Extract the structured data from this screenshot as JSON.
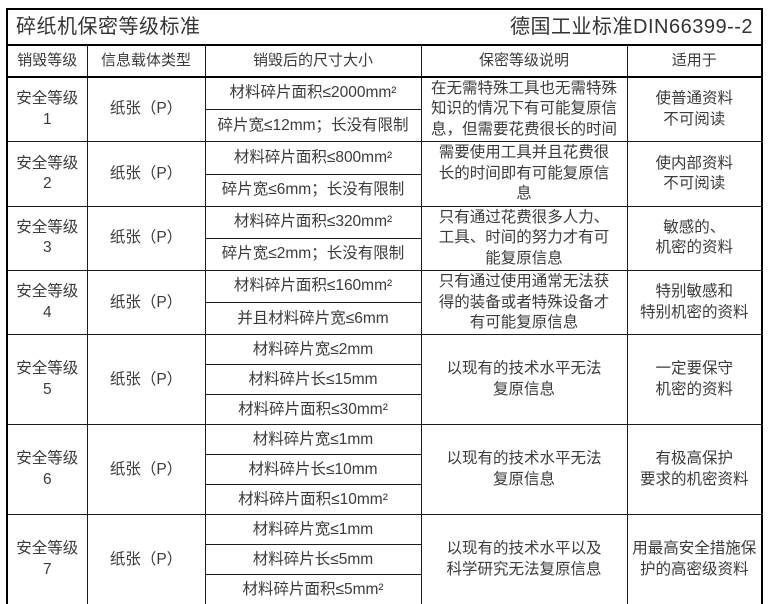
{
  "title": {
    "left": "碎纸机保密等级标准",
    "right": "德国工业标准DIN66399--2"
  },
  "chart_data": {
    "type": "table",
    "columns": [
      "销毁等级",
      "信息载体类型",
      "销毁后的尺寸大小",
      "保密等级说明",
      "适用于"
    ],
    "rows": [
      {
        "level": "安全等级1",
        "media": "纸张（P）",
        "sizes": [
          "材料碎片面积≤2000mm²",
          "碎片宽≤12mm；长没有限制"
        ],
        "description": "在无需特殊工具也无需特殊\n知识的情况下有可能复原信\n息，但需要花费很长的时间",
        "application": "使普通资料\n不可阅读"
      },
      {
        "level": "安全等级2",
        "media": "纸张（P）",
        "sizes": [
          "材料碎片面积≤800mm²",
          "碎片宽≤6mm；长没有限制"
        ],
        "description": "需要使用工具并且花费很\n长的时间即有可能复原信\n息",
        "application": "使内部资料\n不可阅读"
      },
      {
        "level": "安全等级3",
        "media": "纸张（P）",
        "sizes": [
          "材料碎片面积≤320mm²",
          "碎片宽≤2mm；长没有限制"
        ],
        "description": "只有通过花费很多人力、\n工具、时间的努力才有可\n能复原信息",
        "application": "敏感的、\n机密的资料"
      },
      {
        "level": "安全等级4",
        "media": "纸张（P）",
        "sizes": [
          "材料碎片面积≤160mm²",
          "并且材料碎片宽≤6mm"
        ],
        "description": "只有通过使用通常无法获\n得的装备或者特殊设备才\n有可能复原信息",
        "application": "特别敏感和\n特别机密的资料"
      },
      {
        "level": "安全等级5",
        "media": "纸张（P）",
        "sizes": [
          "材料碎片宽≤2mm",
          "材料碎片长≤15mm",
          "材料碎片面积≤30mm²"
        ],
        "description": "以现有的技术水平无法\n复原信息",
        "application": "一定要保守\n机密的资料"
      },
      {
        "level": "安全等级6",
        "media": "纸张（P）",
        "sizes": [
          "材料碎片宽≤1mm",
          "材料碎片长≤10mm",
          "材料碎片面积≤10mm²"
        ],
        "description": "以现有的技术水平无法\n复原信息",
        "application": "有极高保护\n要求的机密资料"
      },
      {
        "level": "安全等级7",
        "media": "纸张（P）",
        "sizes": [
          "材料碎片宽≤1mm",
          "材料碎片长≤5mm",
          "材料碎片面积≤5mm²"
        ],
        "description": "以现有的技术水平以及\n科学研究无法复原信息",
        "application": "用最高安全措施保\n护的高密级资料"
      }
    ]
  }
}
